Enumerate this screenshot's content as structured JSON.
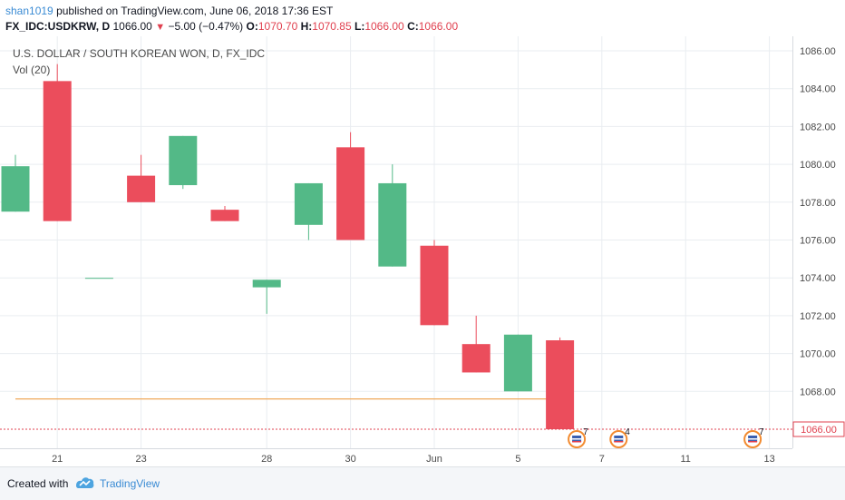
{
  "header": {
    "author": "shan1019",
    "published": "published on TradingView.com, June 06, 2018 17:36 EST",
    "symbol": "FX_IDC:USDKRW, D",
    "last": "1066.00",
    "change": "−5.00 (−0.47%)",
    "open_label": "O:",
    "open": "1070.70",
    "high_label": "H:",
    "high": "1070.85",
    "low_label": "L:",
    "low": "1066.00",
    "close_label": "C:",
    "close": "1066.00"
  },
  "legend": {
    "title": "U.S. DOLLAR / SOUTH KOREAN WON, D, FX_IDC",
    "volume": "Vol (20)"
  },
  "footer": {
    "created_with": "Created with",
    "brand": "TradingView"
  },
  "colors": {
    "up": "#53b987",
    "down": "#eb4d5c",
    "grid": "#e9edf1",
    "ma_line": "#f0a85a",
    "price_line": "#e0404f",
    "badge": "#f28b30"
  },
  "chart_data": {
    "type": "candlestick",
    "title": "U.S. DOLLAR / SOUTH KOREAN WON, D, FX_IDC",
    "ylim": [
      1065,
      1086.6
    ],
    "yticks": [
      1068,
      1070,
      1072,
      1074,
      1076,
      1078,
      1080,
      1082,
      1084,
      1086
    ],
    "ytick_labels": [
      "1068.00",
      "1070.00",
      "1072.00",
      "1074.00",
      "1076.00",
      "1078.00",
      "1080.00",
      "1082.00",
      "1084.00",
      "1086.00"
    ],
    "x_tick_labels": [
      "21",
      "23",
      "28",
      "30",
      "Jun",
      "5",
      "7",
      "11",
      "13"
    ],
    "x_tick_index": [
      1,
      3,
      6,
      8,
      10,
      12,
      14,
      16,
      18
    ],
    "candles": [
      {
        "open": 1077.5,
        "high": 1080.5,
        "low": 1077.5,
        "close": 1079.9
      },
      {
        "open": 1084.4,
        "high": 1085.3,
        "low": 1077.0,
        "close": 1077.0
      },
      {
        "open": 1074.0,
        "high": 1074.0,
        "low": 1074.0,
        "close": 1074.0
      },
      {
        "open": 1079.4,
        "high": 1080.5,
        "low": 1078.0,
        "close": 1078.0
      },
      {
        "open": 1078.9,
        "high": 1081.5,
        "low": 1078.7,
        "close": 1081.5
      },
      {
        "open": 1077.6,
        "high": 1077.8,
        "low": 1077.0,
        "close": 1077.0
      },
      {
        "open": 1073.5,
        "high": 1073.9,
        "low": 1072.1,
        "close": 1073.9
      },
      {
        "open": 1076.8,
        "high": 1079.0,
        "low": 1076.0,
        "close": 1079.0
      },
      {
        "open": 1080.9,
        "high": 1081.7,
        "low": 1076.0,
        "close": 1076.0
      },
      {
        "open": 1074.6,
        "high": 1080.0,
        "low": 1074.6,
        "close": 1079.0
      },
      {
        "open": 1075.7,
        "high": 1076.0,
        "low": 1071.5,
        "close": 1071.5
      },
      {
        "open": 1070.5,
        "high": 1072.0,
        "low": 1069.0,
        "close": 1069.0
      },
      {
        "open": 1068.0,
        "high": 1071.0,
        "low": 1068.0,
        "close": 1071.0
      },
      {
        "open": 1070.7,
        "high": 1070.85,
        "low": 1066.0,
        "close": 1066.0
      }
    ],
    "moving_average_level": 1067.6,
    "last_price": 1066.0,
    "last_price_label": "1066.00",
    "events": [
      {
        "index": 13.4,
        "count": "7"
      },
      {
        "index": 14.4,
        "count": "4"
      },
      {
        "index": 17.6,
        "count": "7"
      }
    ],
    "grid": true
  }
}
